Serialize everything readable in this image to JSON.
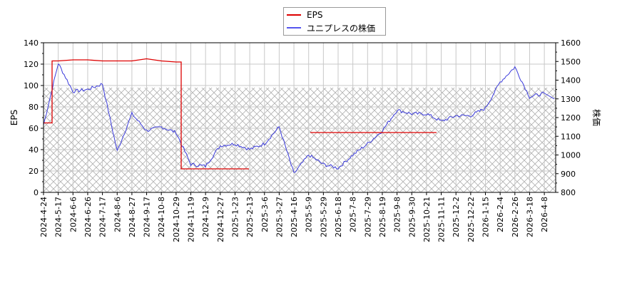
{
  "legend": {
    "items": [
      {
        "label": "EPS",
        "color": "#dd0000"
      },
      {
        "label": "ユニプレスの株価",
        "color": "#4444dd"
      }
    ]
  },
  "axes": {
    "left_label": "EPS",
    "right_label": "株価",
    "left_ticks": [
      "0",
      "20",
      "40",
      "60",
      "80",
      "100",
      "120",
      "140"
    ],
    "right_ticks": [
      "800",
      "900",
      "1000",
      "1100",
      "1200",
      "1300",
      "1400",
      "1500",
      "1600"
    ],
    "x_ticks": [
      "2024-4-24",
      "2024-5-17",
      "2024-6-6",
      "2024-6-26",
      "2024-7-17",
      "2024-8-6",
      "2024-8-27",
      "2024-9-17",
      "2024-10-8",
      "2024-10-29",
      "2024-11-19",
      "2024-12-9",
      "2024-12-27",
      "2025-1-23",
      "2025-2-13",
      "2025-3-6",
      "2025-3-27",
      "2025-4-16",
      "2025-5-9",
      "2025-5-29",
      "2025-6-18",
      "2025-7-8",
      "2025-7-29",
      "2025-8-19",
      "2025-9-8",
      "2025-9-30",
      "2025-10-21",
      "2025-11-11",
      "2025-12-2",
      "2025-12-22",
      "2026-1-15",
      "2026-2-4",
      "2026-2-26",
      "2026-3-18",
      "2026-4-8"
    ]
  },
  "chart_data": {
    "type": "line",
    "title": "",
    "legend_position": "top-center",
    "grid": true,
    "xlabel": "",
    "ylabel": "EPS",
    "ylabel_right": "株価",
    "ylim": [
      0,
      140
    ],
    "ylim_right": [
      800,
      1600
    ],
    "hatched_region_eps": [
      0,
      98
    ],
    "x": [
      "2024-4-24",
      "2024-5-17",
      "2024-6-6",
      "2024-6-26",
      "2024-7-17",
      "2024-8-6",
      "2024-8-27",
      "2024-9-17",
      "2024-10-8",
      "2024-10-29",
      "2024-11-19",
      "2024-12-9",
      "2024-12-27",
      "2025-1-23",
      "2025-2-13",
      "2025-3-6",
      "2025-3-27",
      "2025-4-16",
      "2025-5-9",
      "2025-5-29",
      "2025-6-18",
      "2025-7-8",
      "2025-7-29",
      "2025-8-19",
      "2025-9-8",
      "2025-9-30",
      "2025-10-21",
      "2025-11-11",
      "2025-12-2",
      "2025-12-22",
      "2026-1-15",
      "2026-2-4",
      "2026-2-26",
      "2026-3-18",
      "2026-4-8"
    ],
    "series": [
      {
        "name": "EPS",
        "axis": "left",
        "color": "#dd0000",
        "values": [
          65,
          123,
          124,
          124,
          123,
          123,
          123,
          125,
          123,
          122,
          22,
          22,
          22,
          22,
          null,
          null,
          null,
          null,
          56,
          56,
          56,
          56,
          56,
          56,
          56,
          56,
          56,
          null,
          null,
          null,
          null,
          null,
          null,
          null,
          null
        ]
      },
      {
        "name": "ユニプレスの株価",
        "axis": "right",
        "color": "#4444dd",
        "values": [
          1160,
          1490,
          1340,
          1350,
          1380,
          1020,
          1220,
          1130,
          1150,
          1120,
          950,
          940,
          1050,
          1060,
          1030,
          1060,
          1150,
          900,
          1000,
          950,
          930,
          1000,
          1060,
          1130,
          1240,
          1220,
          1220,
          1180,
          1210,
          1210,
          1250,
          1390,
          1470,
          1310,
          1330
        ]
      }
    ]
  }
}
